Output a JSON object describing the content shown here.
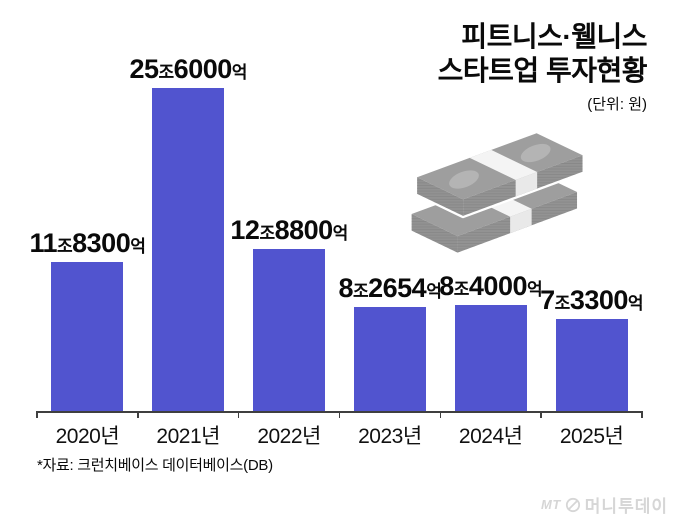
{
  "title": {
    "line1": "피트니스·웰니스",
    "line2": "스타트업 투자현황",
    "unit": "(단위: 원)"
  },
  "chart_data": {
    "type": "bar",
    "title": "피트니스·웰니스 스타트업 투자현황",
    "unit_label": "(단위: 원)",
    "categories": [
      "2020년",
      "2021년",
      "2022년",
      "2023년",
      "2024년",
      "2025년"
    ],
    "values": [
      11.83,
      25.6,
      12.88,
      8.2654,
      8.4,
      7.33
    ],
    "values_unit": "조 원 (trillion KRW)",
    "value_labels": [
      {
        "jo": "11",
        "eok": "8300"
      },
      {
        "jo": "25",
        "eok": "6000"
      },
      {
        "jo": "12",
        "eok": "8800"
      },
      {
        "jo": "8",
        "eok": "2654"
      },
      {
        "jo": "8",
        "eok": "4000"
      },
      {
        "jo": "7",
        "eok": "3300"
      }
    ],
    "unit_jo": "조",
    "unit_eok": "억",
    "ylim": [
      0,
      28
    ],
    "grid": false,
    "legend": null,
    "y_axis_shown": false,
    "bar_color": "#5154cf"
  },
  "source": "*자료: 크런치베이스 데이터베이스(DB)",
  "watermark": {
    "mt": "MT",
    "name": "머니투데이"
  },
  "colors": {
    "bar": "#5154cf",
    "axis": "#3f3f3f",
    "text": "#000000",
    "watermark": "#d6d6d6",
    "money_top": "#9e9e9e",
    "money_side": "#929292",
    "money_band": "#f4f4f4",
    "money_oval": "#b4b4b4"
  }
}
